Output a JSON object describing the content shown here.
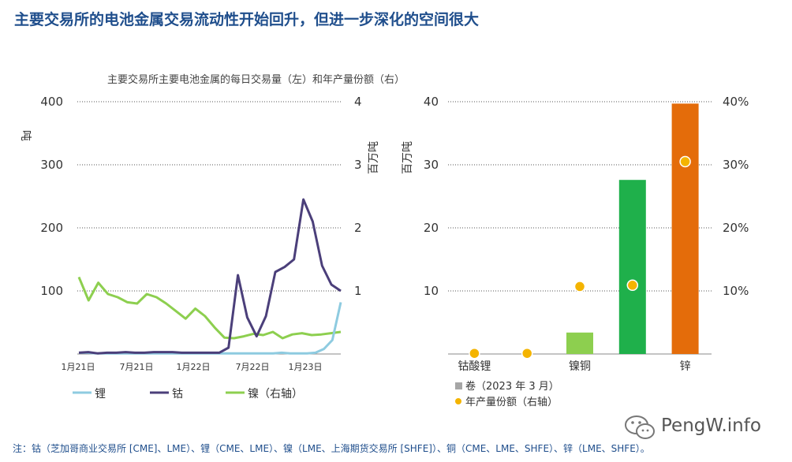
{
  "title": "主要交易所的电池金属交易流动性开始回升，但进一步深化的空间很大",
  "footnote": "注：钴（芝加哥商业交易所 [CME]、LME）、锂（CME、LME）、镍（LME、上海期货交易所 [SHFE]）、铜（CME、LME、SHFE）、锌（LME、SHFE）。",
  "watermark": "PengW.info",
  "chart_data": [
    {
      "type": "line",
      "title": "主要交易所主要电池金属的每日交易量（左）和年产量份额（右）",
      "ylabel": "吨",
      "y2label": "百万吨",
      "ylim": [
        0,
        400
      ],
      "y2lim": [
        0,
        4
      ],
      "yticks": [
        "100",
        "200",
        "300",
        "400"
      ],
      "y2ticks": [
        "1",
        "2",
        "3",
        "4"
      ],
      "x_tick_labels": [
        "1月21日",
        "7月21日",
        "1月22日",
        "7月22日",
        "1月23日"
      ],
      "grid": "dotted",
      "legend_position": "bottom",
      "series": [
        {
          "name": "锂",
          "color": "#8ecbe0",
          "axis": "left",
          "values": [
            2,
            2,
            1,
            1,
            1,
            1,
            1,
            1,
            1,
            1,
            1,
            1,
            1,
            1,
            1,
            1,
            1,
            1,
            1,
            1,
            1,
            1,
            1,
            1,
            2,
            1,
            1,
            1,
            2,
            8,
            22,
            82
          ]
        },
        {
          "name": "钴",
          "color": "#4b3f7a",
          "axis": "left",
          "values": [
            2,
            3,
            1,
            2,
            2,
            3,
            2,
            2,
            3,
            3,
            3,
            2,
            2,
            2,
            2,
            2,
            10,
            125,
            58,
            28,
            60,
            130,
            138,
            150,
            245,
            210,
            140,
            110,
            100
          ]
        },
        {
          "name": "镍（右轴）",
          "color": "#8dcf4f",
          "axis": "right",
          "values": [
            1.22,
            0.85,
            1.13,
            0.95,
            0.9,
            0.82,
            0.8,
            0.95,
            0.9,
            0.8,
            0.68,
            0.56,
            0.72,
            0.6,
            0.42,
            0.26,
            0.25,
            0.28,
            0.32,
            0.3,
            0.35,
            0.25,
            0.31,
            0.33,
            0.3,
            0.31,
            0.33,
            0.35
          ]
        }
      ]
    },
    {
      "type": "bar",
      "ylim": [
        0,
        40
      ],
      "y2lim": [
        0,
        40
      ],
      "ylabel": "百万吨",
      "yticks": [
        "10",
        "20",
        "30",
        "40"
      ],
      "y2ticks": [
        "10%",
        "20%",
        "30%",
        "40%"
      ],
      "categories": [
        "钴酸锂",
        "",
        "镍铜",
        "",
        "锌"
      ],
      "grid": "dotted",
      "legend_position": "bottom",
      "series": [
        {
          "name": "卷（2023 年 3 月）",
          "color": "#a6a6a6",
          "values": [
            0,
            0,
            3.4,
            27.6,
            39.7
          ],
          "bar_colors": [
            "#a6a6a6",
            "#a6a6a6",
            "#8dcf4f",
            "#1fb04b",
            "#e46c0a"
          ]
        },
        {
          "name": "年产量份额（右轴）",
          "color": "#f4b400",
          "values": [
            0.1,
            0.1,
            10.7,
            10.9,
            30.5
          ]
        }
      ]
    }
  ]
}
